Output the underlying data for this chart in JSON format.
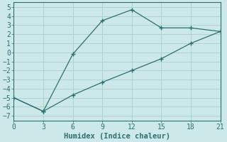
{
  "line1_x": [
    0,
    3,
    6,
    9,
    12,
    15,
    18,
    21
  ],
  "line1_y": [
    -5,
    -6.5,
    -0.2,
    3.5,
    4.7,
    2.7,
    2.7,
    2.3
  ],
  "line2_x": [
    0,
    3,
    6,
    9,
    12,
    15,
    18,
    21
  ],
  "line2_y": [
    -5,
    -6.5,
    -4.7,
    -3.3,
    -2.0,
    -0.7,
    1.0,
    2.3
  ],
  "line_color": "#2d7070",
  "bg_color": "#cce8e8",
  "grid_color": "#aad0d0",
  "xlabel": "Humidex (Indice chaleur)",
  "xlim": [
    0,
    21
  ],
  "ylim": [
    -7.5,
    5.5
  ],
  "xticks": [
    0,
    3,
    6,
    9,
    12,
    15,
    18,
    21
  ],
  "yticks": [
    -7,
    -6,
    -5,
    -4,
    -3,
    -2,
    -1,
    0,
    1,
    2,
    3,
    4,
    5
  ],
  "xlabel_fontsize": 7.5,
  "tick_fontsize": 7
}
